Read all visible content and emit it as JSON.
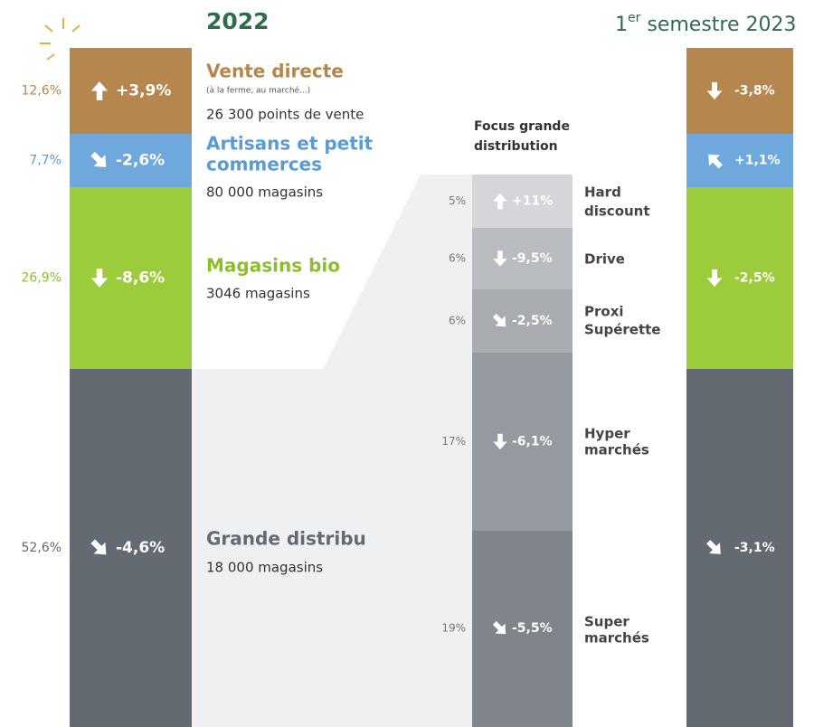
{
  "headings": {
    "year2022": "2022",
    "sem2023_sup": "er",
    "sem2023_pre": "1",
    "sem2023_post": " semestre 2023"
  },
  "left": [
    {
      "share": "12,6%",
      "change": "+3,9%"
    },
    {
      "share": "7,7%",
      "change": "-2,6%"
    },
    {
      "share": "26,9%",
      "change": "-8,6%"
    },
    {
      "share": "52,6%",
      "change": "-4,6%"
    }
  ],
  "labels": [
    {
      "name": "Vente directe",
      "note": "(à la ferme, au marché...)",
      "detail": "26 300 points de vente"
    },
    {
      "name": "Artisans et petit",
      "name2": "commerces",
      "detail": "80 000 magasins"
    },
    {
      "name": "Magasins bio",
      "detail": "3046 magasins"
    },
    {
      "name": "Grande distribu",
      "detail": "18 000 magasins"
    }
  ],
  "focus": {
    "title1": "Focus grande",
    "title2": "distribution",
    "rows": [
      {
        "share": "5%",
        "change": "+11%",
        "name": "Hard",
        "name2": "discount"
      },
      {
        "share": "6%",
        "change": "-9,5%",
        "name": "Drive"
      },
      {
        "share": "6%",
        "change": "-2,5%",
        "name": "Proxi",
        "name2": "Supérette"
      },
      {
        "share": "17%",
        "change": "-6,1%",
        "name": "Hyper",
        "name2": "marchés"
      },
      {
        "share": "19%",
        "change": "-5,5%",
        "name": "Super",
        "name2": "marchés"
      }
    ]
  },
  "right": [
    {
      "change": "-3,8%"
    },
    {
      "change": "+1,1%"
    },
    {
      "change": "-2,5%"
    },
    {
      "change": "-3,1%"
    }
  ]
}
